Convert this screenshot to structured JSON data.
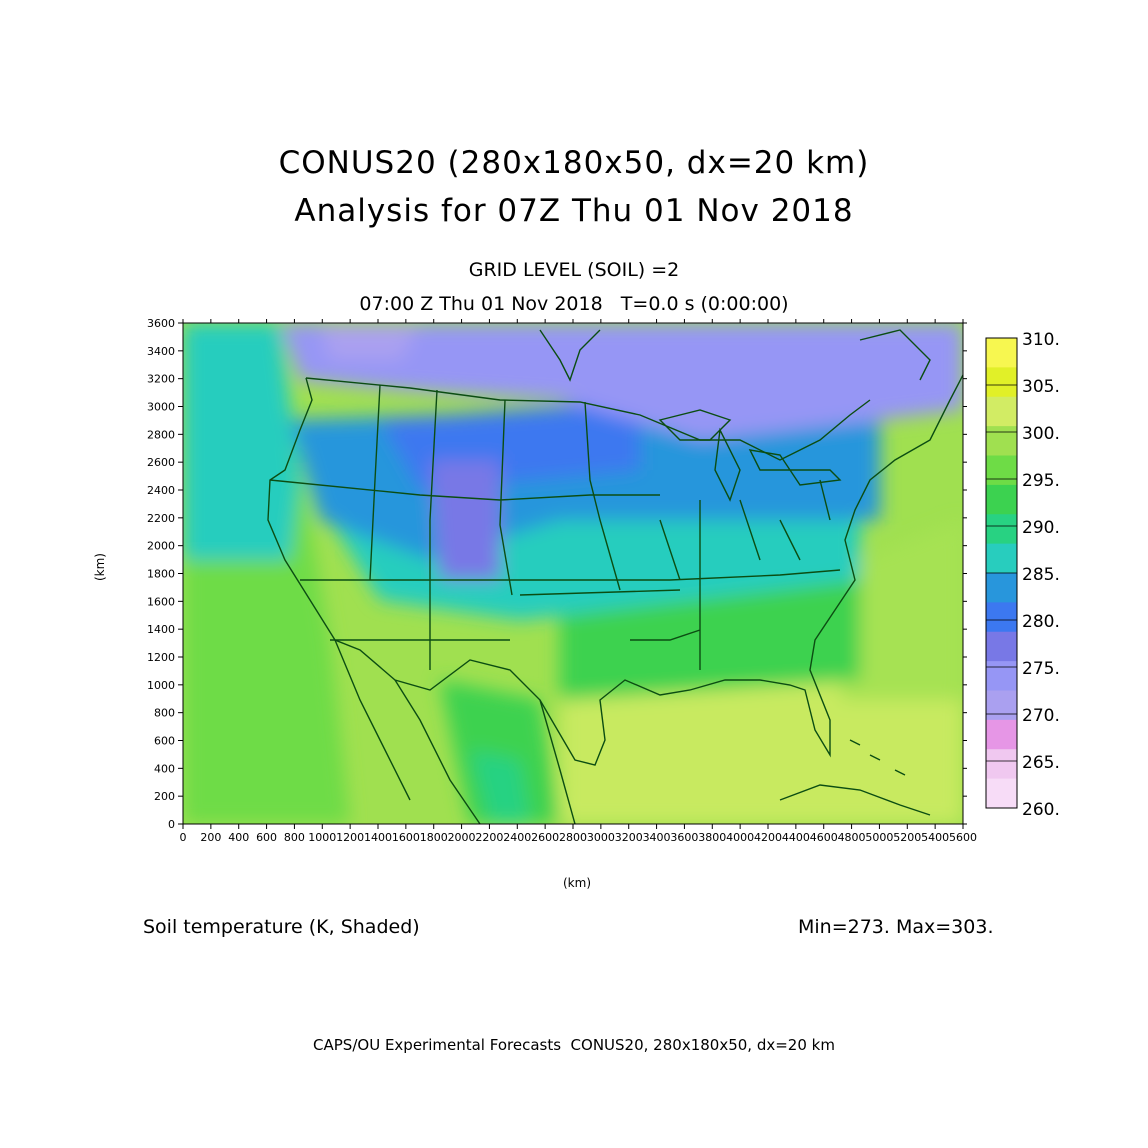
{
  "header": {
    "title_line1": "CONUS20 (280x180x50, dx=20 km)",
    "title_line2": "Analysis for 07Z Thu 01 Nov 2018",
    "subtitle_line1": "GRID LEVEL (SOIL) =2",
    "subtitle_line2": "07:00 Z Thu 01 Nov 2018   T=0.0 s (0:00:00)"
  },
  "footer": {
    "field_label": "Soil temperature (K, Shaded)",
    "min_max": "Min=273. Max=303.",
    "credit": "CAPS/OU Experimental Forecasts  CONUS20, 280x180x50, dx=20 km"
  },
  "axes": {
    "xlabel": "(km)",
    "ylabel": "(km)",
    "xticks": [
      0,
      200,
      400,
      600,
      800,
      1000,
      1200,
      1400,
      1600,
      1800,
      2000,
      2200,
      2400,
      2600,
      2800,
      3000,
      3200,
      3400,
      3600,
      3800,
      4000,
      4200,
      4400,
      4600,
      4800,
      5000,
      5200,
      5400,
      5600
    ],
    "yticks": [
      0,
      200,
      400,
      600,
      800,
      1000,
      1200,
      1400,
      1600,
      1800,
      2000,
      2200,
      2400,
      2600,
      2800,
      3000,
      3200,
      3400,
      3600
    ],
    "xlim": [
      0,
      5600
    ],
    "ylim": [
      0,
      3600
    ]
  },
  "colorbar": {
    "labels": [
      "310.",
      "305.",
      "300.",
      "295.",
      "290.",
      "285.",
      "280.",
      "275.",
      "270.",
      "265.",
      "260."
    ],
    "colors": [
      "#f7f750",
      "#e1f028",
      "#d2ec64",
      "#a0e050",
      "#6edc46",
      "#3cd250",
      "#28d282",
      "#28cdbe",
      "#2896dc",
      "#3c78f0",
      "#7878e6",
      "#9696f5",
      "#aaa0f0",
      "#e696e6",
      "#f0c8f0",
      "#f7dcf7"
    ]
  },
  "chart_data": {
    "type": "heatmap",
    "field": "Soil temperature (K)",
    "min": 273,
    "max": 303,
    "xlim": [
      0,
      5600
    ],
    "ylim": [
      0,
      3600
    ]
  }
}
